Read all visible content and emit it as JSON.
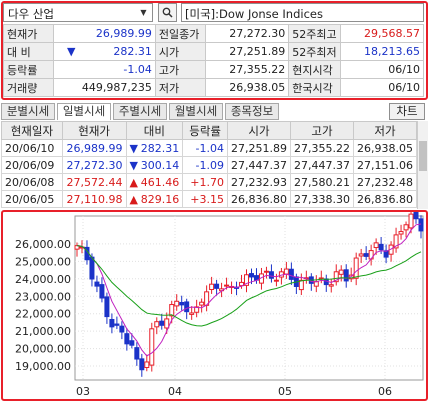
{
  "search": {
    "selected": "다우 산업",
    "title": "[미국]:Dow Jonse Indices"
  },
  "quote": {
    "rows": [
      {
        "l1": "현재가",
        "v1": "26,989.99",
        "l2": "전일종가",
        "v2": "27,272.30",
        "l3": "52주최고",
        "v3": "29,568.57"
      },
      {
        "l1": "대  비",
        "v1": "282.31",
        "l2": "시가",
        "v2": "27,251.89",
        "l3": "52주최저",
        "v3": "18,213.65"
      },
      {
        "l1": "등락률",
        "v1": "-1.04",
        "l2": "고가",
        "v2": "27,355.22",
        "l3": "현지시각",
        "v3": "06/10"
      },
      {
        "l1": "거래량",
        "v1": "449,987,235",
        "l2": "저가",
        "v2": "26,938.05",
        "l3": "한국시각",
        "v3": "06/10"
      }
    ],
    "down_arrow": "▼"
  },
  "tabs": [
    "분별시세",
    "일별시세",
    "주별시세",
    "월별시세",
    "종목정보"
  ],
  "chart_button": "차트",
  "daily": {
    "headers": [
      "현재일자",
      "현재가",
      "대비",
      "등락률",
      "시가",
      "고가",
      "저가"
    ],
    "rows": [
      {
        "date": "20/06/10",
        "price": "26,989.99",
        "arrow": "▼",
        "chg": "282.31",
        "rate": "-1.04",
        "open": "27,251.89",
        "high": "27,355.22",
        "low": "26,938.05",
        "dir": "down"
      },
      {
        "date": "20/06/09",
        "price": "27,272.30",
        "arrow": "▼",
        "chg": "300.14",
        "rate": "-1.09",
        "open": "27,447.37",
        "high": "27,447.37",
        "low": "27,151.06",
        "dir": "down"
      },
      {
        "date": "20/06/08",
        "price": "27,572.44",
        "arrow": "▲",
        "chg": "461.46",
        "rate": "+1.70",
        "open": "27,232.93",
        "high": "27,580.21",
        "low": "27,232.48",
        "dir": "up"
      },
      {
        "date": "20/06/05",
        "price": "27,110.98",
        "arrow": "▲",
        "chg": "829.16",
        "rate": "+3.15",
        "open": "26,836.80",
        "high": "27,338.30",
        "low": "26,836.80",
        "dir": "up"
      }
    ]
  },
  "chart_data": {
    "type": "candlestick",
    "y_ticks": [
      "26,000.00",
      "25,000.00",
      "24,000.00",
      "23,000.00",
      "22,000.00",
      "21,000.00",
      "20,000.00",
      "19,000.00"
    ],
    "x_ticks": [
      "03",
      "04",
      "05",
      "06"
    ],
    "ylim": [
      18200,
      27600
    ],
    "up_color": "#e8202a",
    "down_color": "#1b33c8",
    "ma_short_color": "#c020c0",
    "ma_long_color": "#19a019"
  }
}
